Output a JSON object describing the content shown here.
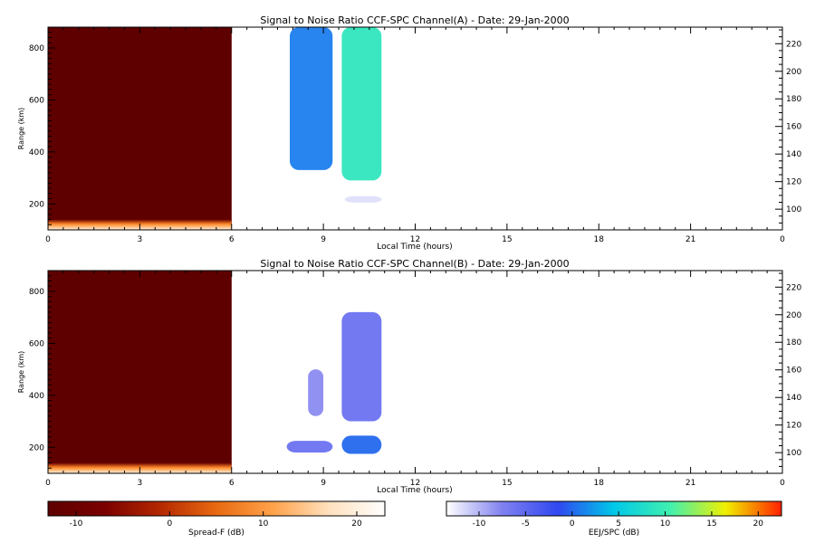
{
  "chart_data": [
    {
      "type": "heatmap",
      "title": "Signal to Noise Ratio CCF-SPC Channel(A) - Date: 29-Jan-2000",
      "xlabel": "Local Time (hours)",
      "ylabel": "Range (km)",
      "xlim": [
        0,
        24
      ],
      "ylim": [
        100,
        880
      ],
      "xticks": [
        "0",
        "3",
        "6",
        "9",
        "12",
        "15",
        "18",
        "21",
        "0"
      ],
      "yticks": [
        "200",
        "400",
        "600",
        "800"
      ],
      "right_axis": {
        "ylim": [
          85,
          232
        ],
        "ticks": [
          "100",
          "120",
          "140",
          "160",
          "180",
          "200",
          "220"
        ]
      },
      "regions": [
        {
          "name": "Spread-F",
          "x": [
            0,
            6
          ],
          "y": [
            100,
            880
          ],
          "value_db": -13
        },
        {
          "name": "Spread-F low-range layer",
          "x": [
            0,
            6
          ],
          "y": [
            100,
            140
          ],
          "value_db": 20
        },
        {
          "name": "EEJ/SPC",
          "x": [
            7.9,
            9.3
          ],
          "y": [
            330,
            880
          ],
          "value_db": 1
        },
        {
          "name": "EEJ/SPC",
          "x": [
            9.6,
            10.9
          ],
          "y": [
            290,
            880
          ],
          "value_db": 9
        },
        {
          "name": "EEJ/SPC",
          "x": [
            9.7,
            10.9
          ],
          "y": [
            205,
            230
          ],
          "value_db": -12
        }
      ]
    },
    {
      "type": "heatmap",
      "title": "Signal to Noise Ratio CCF-SPC Channel(B) - Date: 29-Jan-2000",
      "xlabel": "Local Time (hours)",
      "ylabel": "Range (km)",
      "xlim": [
        0,
        24
      ],
      "ylim": [
        100,
        880
      ],
      "xticks": [
        "0",
        "3",
        "6",
        "9",
        "12",
        "15",
        "18",
        "21",
        "0"
      ],
      "yticks": [
        "200",
        "400",
        "600",
        "800"
      ],
      "right_axis": {
        "ylim": [
          85,
          232
        ],
        "ticks": [
          "100",
          "120",
          "140",
          "160",
          "180",
          "200",
          "220"
        ]
      },
      "regions": [
        {
          "name": "Spread-F",
          "x": [
            0,
            6
          ],
          "y": [
            100,
            880
          ],
          "value_db": -13
        },
        {
          "name": "Spread-F low-range layer",
          "x": [
            0,
            6
          ],
          "y": [
            100,
            140
          ],
          "value_db": 20
        },
        {
          "name": "EEJ/SPC",
          "x": [
            8.5,
            9.0
          ],
          "y": [
            320,
            500
          ],
          "value_db": -8
        },
        {
          "name": "EEJ/SPC",
          "x": [
            9.6,
            10.9
          ],
          "y": [
            300,
            720
          ],
          "value_db": -6
        },
        {
          "name": "EEJ/SPC",
          "x": [
            7.8,
            9.3
          ],
          "y": [
            180,
            225
          ],
          "value_db": -6
        },
        {
          "name": "EEJ/SPC",
          "x": [
            9.6,
            10.9
          ],
          "y": [
            175,
            245
          ],
          "value_db": 0
        }
      ]
    }
  ],
  "colorbars": [
    {
      "label": "Spread-F (dB)",
      "range": [
        -13,
        23
      ],
      "ticks": [
        "-10",
        "0",
        "10",
        "20"
      ],
      "tick_values": [
        -10,
        0,
        10,
        20
      ],
      "stops": [
        "#5e0000",
        "#7a0000",
        "#b42800",
        "#e86a12",
        "#ffa24a",
        "#ffe0bd",
        "#ffffff"
      ]
    },
    {
      "label": "EEJ/SPC (dB)",
      "range": [
        -13.5,
        22.5
      ],
      "ticks": [
        "-10",
        "-5",
        "0",
        "5",
        "10",
        "15",
        "20"
      ],
      "tick_values": [
        -10,
        -5,
        0,
        5,
        10,
        15,
        20
      ],
      "stops": [
        "#ffffff",
        "#8080f0",
        "#3048f0",
        "#00c8e8",
        "#40f0b0",
        "#f0f000",
        "#ff2000"
      ]
    }
  ]
}
